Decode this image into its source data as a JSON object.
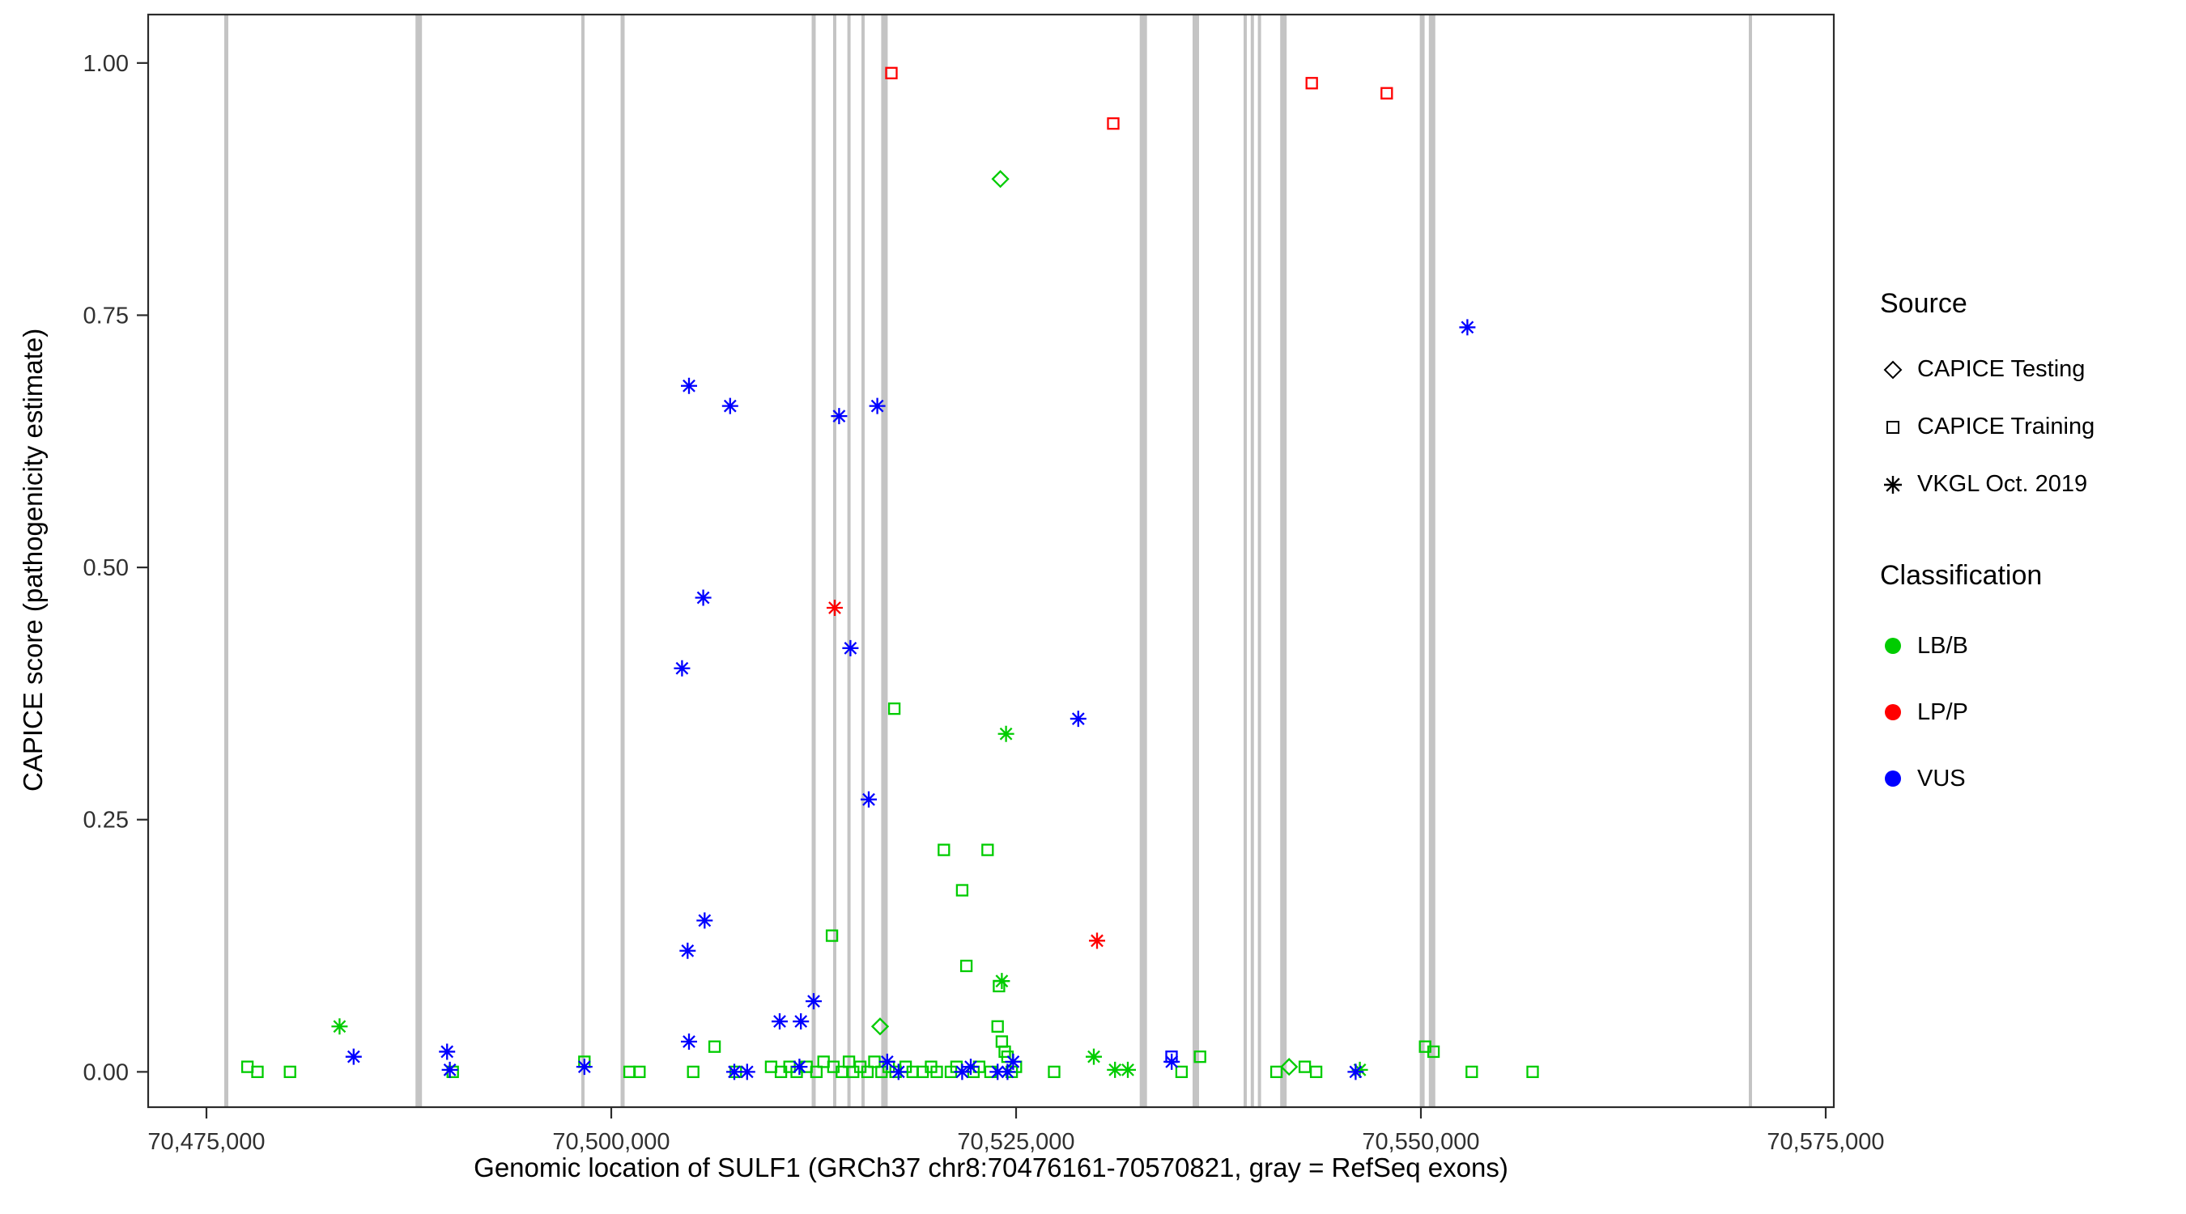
{
  "chart_data": {
    "type": "scatter",
    "title": "",
    "xlabel": "Genomic location of SULF1 (GRCh37 chr8:70476161-70570821, gray = RefSeq exons)",
    "ylabel": "CAPICE score (pathogenicity estimate)",
    "xlim": [
      70471400,
      70575500
    ],
    "ylim": [
      -0.035,
      1.048
    ],
    "grid": "none",
    "legend_position": "right",
    "x_ticks": [
      {
        "value": 70475000,
        "label": "70,475,000"
      },
      {
        "value": 70500000,
        "label": "70,500,000"
      },
      {
        "value": 70525000,
        "label": "70,525,000"
      },
      {
        "value": 70550000,
        "label": "70,550,000"
      },
      {
        "value": 70575000,
        "label": "70,575,000"
      }
    ],
    "y_ticks": [
      {
        "value": 0.0,
        "label": "0.00"
      },
      {
        "value": 0.25,
        "label": "0.25"
      },
      {
        "value": 0.5,
        "label": "0.50"
      },
      {
        "value": 0.75,
        "label": "0.75"
      },
      {
        "value": 1.0,
        "label": "1.00"
      }
    ],
    "colors": {
      "LB/B": "#00CC00",
      "LP/P": "#FF0000",
      "VUS": "#0000FF",
      "exon": "#C4C4C4",
      "axis": "#2B2B2B",
      "tick_text": "#303030"
    },
    "legend": {
      "source": {
        "title": "Source",
        "items": [
          {
            "label": "CAPICE Testing",
            "marker": "diamond",
            "icon": "diamond-icon"
          },
          {
            "label": "CAPICE Training",
            "marker": "square",
            "icon": "square-icon"
          },
          {
            "label": "VKGL Oct. 2019",
            "marker": "asterisk",
            "icon": "asterisk-icon"
          }
        ]
      },
      "classification": {
        "title": "Classification",
        "items": [
          {
            "label": "LB/B",
            "color": "#00CC00"
          },
          {
            "label": "LP/P",
            "color": "#FF0000"
          },
          {
            "label": "VUS",
            "color": "#0000FF"
          }
        ]
      }
    },
    "exons": [
      {
        "pos": 70476224,
        "w": 5
      },
      {
        "pos": 70488110,
        "w": 8
      },
      {
        "pos": 70498250,
        "w": 4
      },
      {
        "pos": 70500700,
        "w": 5
      },
      {
        "pos": 70512500,
        "w": 5
      },
      {
        "pos": 70513800,
        "w": 4
      },
      {
        "pos": 70514680,
        "w": 4
      },
      {
        "pos": 70515550,
        "w": 4
      },
      {
        "pos": 70516870,
        "w": 8
      },
      {
        "pos": 70532860,
        "w": 9
      },
      {
        "pos": 70536100,
        "w": 8
      },
      {
        "pos": 70539150,
        "w": 4
      },
      {
        "pos": 70539590,
        "w": 4
      },
      {
        "pos": 70540030,
        "w": 4
      },
      {
        "pos": 70541510,
        "w": 8
      },
      {
        "pos": 70550080,
        "w": 6
      },
      {
        "pos": 70550690,
        "w": 8
      },
      {
        "pos": 70570350,
        "w": 4
      }
    ],
    "series": [
      {
        "name": "CAPICE Testing / LB/B",
        "source": "CAPICE Testing",
        "classification": "LB/B",
        "marker": "diamond",
        "points": [
          [
            70524030,
            0.885
          ],
          [
            70516600,
            0.045
          ],
          [
            70541860,
            0.005
          ]
        ]
      },
      {
        "name": "CAPICE Training / LB/B",
        "source": "CAPICE Training",
        "classification": "LB/B",
        "marker": "square",
        "points": [
          [
            70477530,
            0.005
          ],
          [
            70478150,
            0
          ],
          [
            70480160,
            0
          ],
          [
            70490210,
            0
          ],
          [
            70498340,
            0.01
          ],
          [
            70501130,
            0
          ],
          [
            70501740,
            0
          ],
          [
            70505060,
            0
          ],
          [
            70506380,
            0.025
          ],
          [
            70507690,
            0
          ],
          [
            70509870,
            0.005
          ],
          [
            70510480,
            0
          ],
          [
            70511010,
            0.005
          ],
          [
            70511450,
            0
          ],
          [
            70512060,
            0.005
          ],
          [
            70512670,
            0
          ],
          [
            70513110,
            0.01
          ],
          [
            70513630,
            0.135
          ],
          [
            70513720,
            0.005
          ],
          [
            70514240,
            0
          ],
          [
            70514680,
            0.01
          ],
          [
            70514940,
            0
          ],
          [
            70515380,
            0.005
          ],
          [
            70515820,
            0
          ],
          [
            70516250,
            0.01
          ],
          [
            70516690,
            0
          ],
          [
            70517130,
            0.005
          ],
          [
            70517480,
            0.36
          ],
          [
            70517560,
            0
          ],
          [
            70518180,
            0.005
          ],
          [
            70518615,
            0
          ],
          [
            70519230,
            0
          ],
          [
            70519750,
            0.005
          ],
          [
            70520100,
            0
          ],
          [
            70520540,
            0.22
          ],
          [
            70520975,
            0
          ],
          [
            70521320,
            0.005
          ],
          [
            70521670,
            0.18
          ],
          [
            70521930,
            0.105
          ],
          [
            70522370,
            0
          ],
          [
            70522720,
            0.005
          ],
          [
            70523240,
            0.22
          ],
          [
            70523420,
            0
          ],
          [
            70523860,
            0.045
          ],
          [
            70523945,
            0.085
          ],
          [
            70524120,
            0.03
          ],
          [
            70524300,
            0.02
          ],
          [
            70524470,
            0.015
          ],
          [
            70524730,
            0
          ],
          [
            70524990,
            0.005
          ],
          [
            70527350,
            0
          ],
          [
            70535220,
            0
          ],
          [
            70536360,
            0.015
          ],
          [
            70541080,
            0
          ],
          [
            70542830,
            0.005
          ],
          [
            70543530,
            0
          ],
          [
            70550260,
            0.025
          ],
          [
            70550780,
            0.02
          ],
          [
            70553140,
            0
          ],
          [
            70556900,
            0
          ]
        ]
      },
      {
        "name": "CAPICE Training / LP/P",
        "source": "CAPICE Training",
        "classification": "LP/P",
        "marker": "square",
        "points": [
          [
            70517300,
            0.99
          ],
          [
            70531000,
            0.94
          ],
          [
            70543260,
            0.98
          ],
          [
            70547890,
            0.97
          ]
        ]
      },
      {
        "name": "CAPICE Training / VUS",
        "source": "CAPICE Training",
        "classification": "VUS",
        "marker": "square",
        "points": [
          [
            70534600,
            0.015
          ]
        ]
      },
      {
        "name": "VKGL Oct. 2019 / LB/B",
        "source": "VKGL Oct. 2019",
        "classification": "LB/B",
        "marker": "asterisk",
        "points": [
          [
            70483220,
            0.045
          ],
          [
            70524380,
            0.335
          ],
          [
            70524120,
            0.09
          ],
          [
            70529800,
            0.015
          ],
          [
            70531110,
            0.002
          ],
          [
            70531900,
            0.002
          ],
          [
            70546230,
            0.002
          ]
        ]
      },
      {
        "name": "VKGL Oct. 2019 / LP/P",
        "source": "VKGL Oct. 2019",
        "classification": "LP/P",
        "marker": "asterisk",
        "points": [
          [
            70513800,
            0.46
          ],
          [
            70530000,
            0.13
          ]
        ]
      },
      {
        "name": "VKGL Oct. 2019 / VUS",
        "source": "VKGL Oct. 2019",
        "classification": "VUS",
        "marker": "asterisk",
        "points": [
          [
            70504800,
            0.68
          ],
          [
            70507340,
            0.66
          ],
          [
            70514070,
            0.65
          ],
          [
            70516430,
            0.66
          ],
          [
            70552870,
            0.738
          ],
          [
            70505680,
            0.47
          ],
          [
            70504370,
            0.4
          ],
          [
            70514770,
            0.42
          ],
          [
            70515900,
            0.27
          ],
          [
            70528840,
            0.35
          ],
          [
            70505765,
            0.15
          ],
          [
            70504715,
            0.12
          ],
          [
            70504800,
            0.03
          ],
          [
            70510400,
            0.05
          ],
          [
            70511710,
            0.05
          ],
          [
            70512500,
            0.07
          ],
          [
            70489860,
            0.02
          ],
          [
            70490030,
            0.002
          ],
          [
            70484090,
            0.015
          ],
          [
            70498340,
            0.005
          ],
          [
            70507600,
            0
          ],
          [
            70508390,
            0
          ],
          [
            70511620,
            0.005
          ],
          [
            70517040,
            0.01
          ],
          [
            70517740,
            0
          ],
          [
            70521670,
            0
          ],
          [
            70522200,
            0.005
          ],
          [
            70523860,
            0
          ],
          [
            70524470,
            0
          ],
          [
            70524820,
            0.01
          ],
          [
            70534610,
            0.01
          ],
          [
            70545970,
            0
          ]
        ]
      }
    ]
  }
}
